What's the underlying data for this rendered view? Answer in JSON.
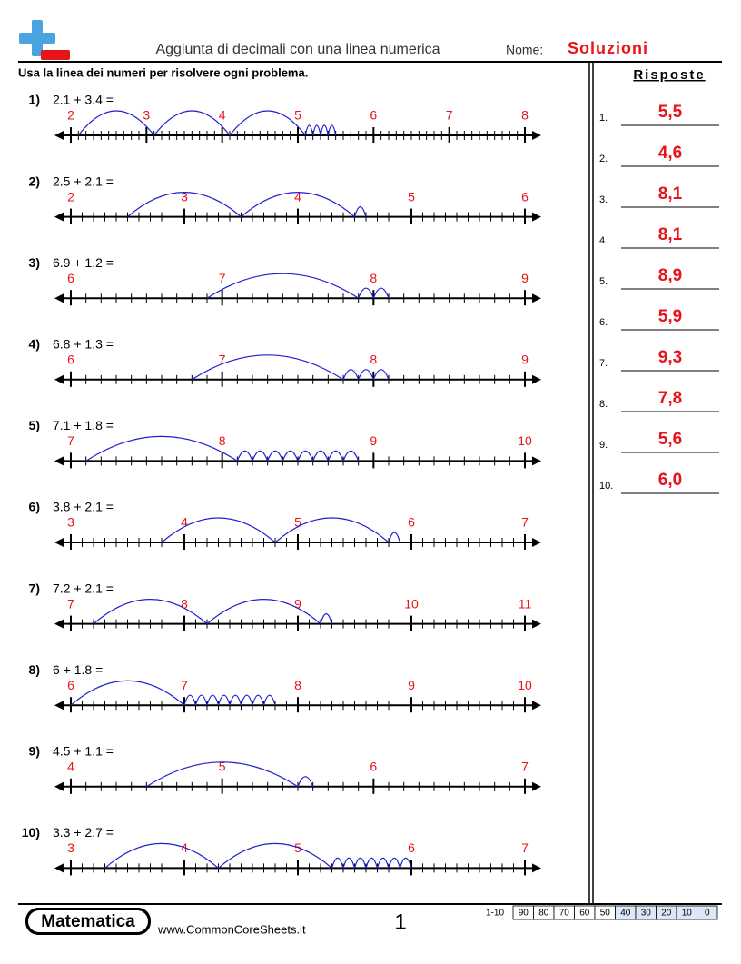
{
  "header": {
    "title": "Aggiunta di decimali con una linea numerica",
    "name_label": "Nome:",
    "name_value": "Soluzioni"
  },
  "instructions": "Usa la linea dei numeri per risolvere ogni problema.",
  "answers_title": "Risposte",
  "problems": [
    {
      "number": "1)",
      "expression": "2.1 + 3.4 =",
      "scale": [
        "2",
        "3",
        "4",
        "5",
        "6",
        "7",
        "8"
      ]
    },
    {
      "number": "2)",
      "expression": "2.5 + 2.1 =",
      "scale": [
        "2",
        "3",
        "4",
        "5",
        "6"
      ]
    },
    {
      "number": "3)",
      "expression": "6.9 + 1.2 =",
      "scale": [
        "6",
        "7",
        "8",
        "9"
      ]
    },
    {
      "number": "4)",
      "expression": "6.8 + 1.3 =",
      "scale": [
        "6",
        "7",
        "8",
        "9"
      ]
    },
    {
      "number": "5)",
      "expression": "7.1 + 1.8 =",
      "scale": [
        "7",
        "8",
        "9",
        "10"
      ]
    },
    {
      "number": "6)",
      "expression": "3.8 + 2.1 =",
      "scale": [
        "3",
        "4",
        "5",
        "6",
        "7"
      ]
    },
    {
      "number": "7)",
      "expression": "7.2 + 2.1 =",
      "scale": [
        "7",
        "8",
        "9",
        "10",
        "11"
      ]
    },
    {
      "number": "8)",
      "expression": "6 + 1.8 =",
      "scale": [
        "6",
        "7",
        "8",
        "9",
        "10"
      ]
    },
    {
      "number": "9)",
      "expression": "4.5 + 1.1 =",
      "scale": [
        "4",
        "5",
        "6",
        "7"
      ]
    },
    {
      "number": "10)",
      "expression": "3.3 + 2.7 =",
      "scale": [
        "3",
        "4",
        "5",
        "6",
        "7"
      ]
    }
  ],
  "answers": [
    {
      "number": "1.",
      "value": "5,5"
    },
    {
      "number": "2.",
      "value": "4,6"
    },
    {
      "number": "3.",
      "value": "8,1"
    },
    {
      "number": "4.",
      "value": "8,1"
    },
    {
      "number": "5.",
      "value": "8,9"
    },
    {
      "number": "6.",
      "value": "5,9"
    },
    {
      "number": "7.",
      "value": "9,3"
    },
    {
      "number": "8.",
      "value": "7,8"
    },
    {
      "number": "9.",
      "value": "5,6"
    },
    {
      "number": "10.",
      "value": "6,0"
    }
  ],
  "footer": {
    "brand": "Matematica",
    "url": "www.CommonCoreSheets.it",
    "page": "1",
    "score_label": "1-10",
    "scores": [
      "90",
      "80",
      "70",
      "60",
      "50",
      "40",
      "30",
      "20",
      "10",
      "0"
    ]
  }
}
